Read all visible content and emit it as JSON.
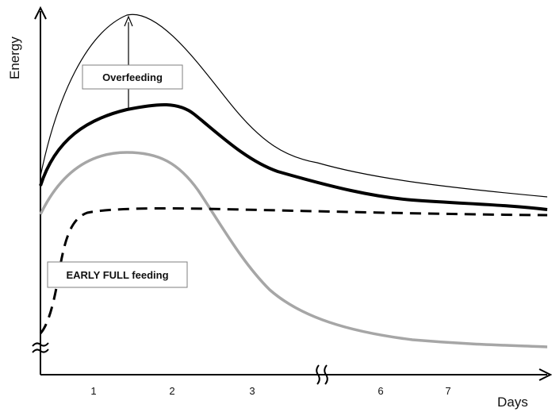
{
  "chart_data": {
    "type": "line",
    "ylabel": "Energy",
    "xlabel": "Days",
    "x_ticks": [
      "1",
      "2",
      "3",
      "6",
      "7"
    ],
    "annotations": {
      "overfeeding": "Overfeeding",
      "early_full": "EARLY FULL feeding"
    },
    "colors": {
      "thin_curve": "#000000",
      "thick_curve": "#000000",
      "gray_curve": "#a6a6a6",
      "dashed_curve": "#000000"
    }
  }
}
